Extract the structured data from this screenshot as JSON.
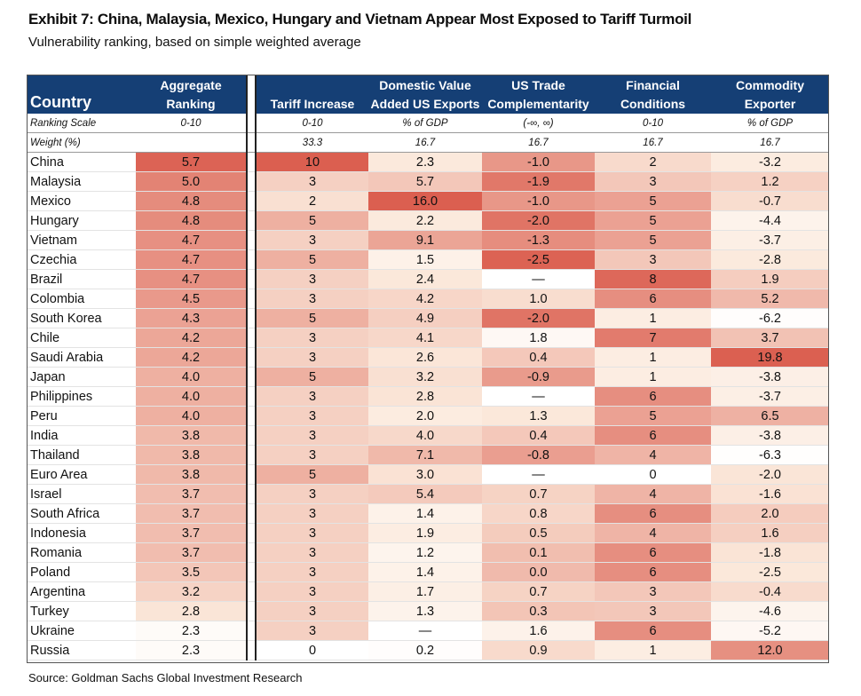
{
  "title": "Exhibit 7: China, Malaysia, Mexico, Hungary and Vietnam Appear Most Exposed to Tariff Turmoil",
  "subtitle": "Vulnerability ranking, based on simple weighted average",
  "source": "Source: Goldman Sachs Global Investment Research",
  "header": {
    "country": "Country",
    "agg_1": "Aggregate",
    "agg_2": "Ranking",
    "tariff_1": "",
    "tariff_2": "Tariff Increase",
    "dom_1": "Domestic Value",
    "dom_2": "Added US Exports",
    "ust_1": "US Trade",
    "ust_2": "Complementarity",
    "fin_1": "Financial",
    "fin_2": "Conditions",
    "com_1": "Commodity",
    "com_2": "Exporter"
  },
  "scale_row": {
    "label": "Ranking Scale",
    "agg": "0-10",
    "tariff": "0-10",
    "dom": "% of GDP",
    "ust": "(-∞, ∞)",
    "fin": "0-10",
    "com": "% of GDP"
  },
  "weight_row": {
    "label": "Weight (%)",
    "agg": "",
    "tariff": "33.3",
    "dom": "16.7",
    "ust": "16.7",
    "fin": "16.7",
    "com": "16.7"
  },
  "colors": {
    "header_bg": "#153f75",
    "heat_low": "#fbe8dc",
    "heat_high": "#dc6050"
  },
  "rows": [
    {
      "country": "China",
      "agg": "5.7",
      "tariff": "10",
      "dom": "2.3",
      "ust": "-1.0",
      "fin": "2",
      "com": "-3.2"
    },
    {
      "country": "Malaysia",
      "agg": "5.0",
      "tariff": "3",
      "dom": "5.7",
      "ust": "-1.9",
      "fin": "3",
      "com": "1.2"
    },
    {
      "country": "Mexico",
      "agg": "4.8",
      "tariff": "2",
      "dom": "16.0",
      "ust": "-1.0",
      "fin": "5",
      "com": "-0.7"
    },
    {
      "country": "Hungary",
      "agg": "4.8",
      "tariff": "5",
      "dom": "2.2",
      "ust": "-2.0",
      "fin": "5",
      "com": "-4.4"
    },
    {
      "country": "Vietnam",
      "agg": "4.7",
      "tariff": "3",
      "dom": "9.1",
      "ust": "-1.3",
      "fin": "5",
      "com": "-3.7"
    },
    {
      "country": "Czechia",
      "agg": "4.7",
      "tariff": "5",
      "dom": "1.5",
      "ust": "-2.5",
      "fin": "3",
      "com": "-2.8"
    },
    {
      "country": "Brazil",
      "agg": "4.7",
      "tariff": "3",
      "dom": "2.4",
      "ust": "—",
      "fin": "8",
      "com": "1.9"
    },
    {
      "country": "Colombia",
      "agg": "4.5",
      "tariff": "3",
      "dom": "4.2",
      "ust": "1.0",
      "fin": "6",
      "com": "5.2"
    },
    {
      "country": "South Korea",
      "agg": "4.3",
      "tariff": "5",
      "dom": "4.9",
      "ust": "-2.0",
      "fin": "1",
      "com": "-6.2"
    },
    {
      "country": "Chile",
      "agg": "4.2",
      "tariff": "3",
      "dom": "4.1",
      "ust": "1.8",
      "fin": "7",
      "com": "3.7"
    },
    {
      "country": "Saudi Arabia",
      "agg": "4.2",
      "tariff": "3",
      "dom": "2.6",
      "ust": "0.4",
      "fin": "1",
      "com": "19.8"
    },
    {
      "country": "Japan",
      "agg": "4.0",
      "tariff": "5",
      "dom": "3.2",
      "ust": "-0.9",
      "fin": "1",
      "com": "-3.8"
    },
    {
      "country": "Philippines",
      "agg": "4.0",
      "tariff": "3",
      "dom": "2.8",
      "ust": "—",
      "fin": "6",
      "com": "-3.7"
    },
    {
      "country": "Peru",
      "agg": "4.0",
      "tariff": "3",
      "dom": "2.0",
      "ust": "1.3",
      "fin": "5",
      "com": "6.5"
    },
    {
      "country": "India",
      "agg": "3.8",
      "tariff": "3",
      "dom": "4.0",
      "ust": "0.4",
      "fin": "6",
      "com": "-3.8"
    },
    {
      "country": "Thailand",
      "agg": "3.8",
      "tariff": "3",
      "dom": "7.1",
      "ust": "-0.8",
      "fin": "4",
      "com": "-6.3"
    },
    {
      "country": "Euro Area",
      "agg": "3.8",
      "tariff": "5",
      "dom": "3.0",
      "ust": "—",
      "fin": "0",
      "com": "-2.0"
    },
    {
      "country": "Israel",
      "agg": "3.7",
      "tariff": "3",
      "dom": "5.4",
      "ust": "0.7",
      "fin": "4",
      "com": "-1.6"
    },
    {
      "country": "South Africa",
      "agg": "3.7",
      "tariff": "3",
      "dom": "1.4",
      "ust": "0.8",
      "fin": "6",
      "com": "2.0"
    },
    {
      "country": "Indonesia",
      "agg": "3.7",
      "tariff": "3",
      "dom": "1.9",
      "ust": "0.5",
      "fin": "4",
      "com": "1.6"
    },
    {
      "country": "Romania",
      "agg": "3.7",
      "tariff": "3",
      "dom": "1.2",
      "ust": "0.1",
      "fin": "6",
      "com": "-1.8"
    },
    {
      "country": "Poland",
      "agg": "3.5",
      "tariff": "3",
      "dom": "1.4",
      "ust": "0.0",
      "fin": "6",
      "com": "-2.5"
    },
    {
      "country": "Argentina",
      "agg": "3.2",
      "tariff": "3",
      "dom": "1.7",
      "ust": "0.7",
      "fin": "3",
      "com": "-0.4"
    },
    {
      "country": "Turkey",
      "agg": "2.8",
      "tariff": "3",
      "dom": "1.3",
      "ust": "0.3",
      "fin": "3",
      "com": "-4.6"
    },
    {
      "country": "Ukraine",
      "agg": "2.3",
      "tariff": "3",
      "dom": "—",
      "ust": "1.6",
      "fin": "6",
      "com": "-5.2"
    },
    {
      "country": "Russia",
      "agg": "2.3",
      "tariff": "0",
      "dom": "0.2",
      "ust": "0.9",
      "fin": "1",
      "com": "12.0"
    }
  ]
}
